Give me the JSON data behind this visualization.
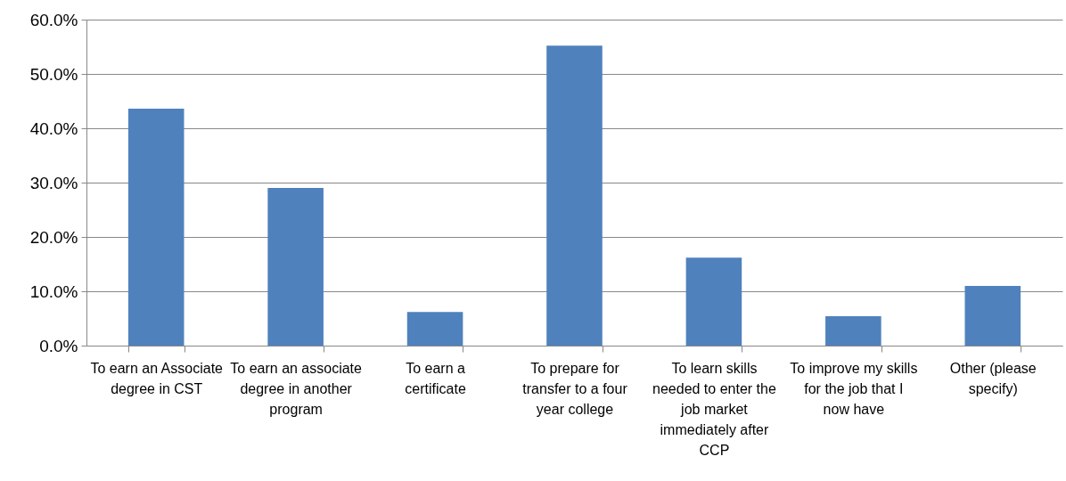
{
  "chart_data": {
    "type": "bar",
    "categories": [
      "To earn an Associate degree in CST",
      "To earn an associate degree in another program",
      "To earn a certificate",
      "To prepare for transfer to a four year college",
      "To learn skills needed to enter the job market immediately after CCP",
      "To improve my skills for the job that I now have",
      "Other (please specify)"
    ],
    "values": [
      43.6,
      29.0,
      6.2,
      55.2,
      16.2,
      5.4,
      11.0
    ],
    "color": "#4f81bd",
    "ylim": [
      0,
      60
    ],
    "yticks": [
      {
        "value": 0,
        "label": "0.0%"
      },
      {
        "value": 10,
        "label": "10.0%"
      },
      {
        "value": 20,
        "label": "20.0%"
      },
      {
        "value": 30,
        "label": "30.0%"
      },
      {
        "value": 40,
        "label": "40.0%"
      },
      {
        "value": 50,
        "label": "50.0%"
      },
      {
        "value": 60,
        "label": "60.0%"
      }
    ],
    "grid": "y"
  }
}
